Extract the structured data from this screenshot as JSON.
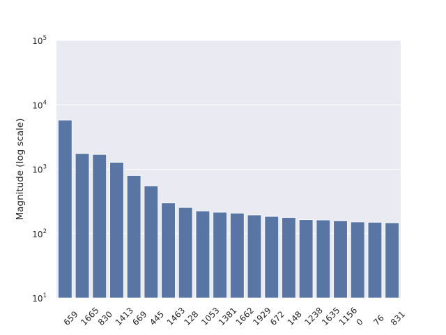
{
  "chart_data": {
    "type": "bar",
    "title": "",
    "xlabel": "",
    "ylabel": "Magnitude (log scale)",
    "y_scale": "log",
    "ylim": [
      10,
      100000
    ],
    "y_ticks": [
      {
        "base": "10",
        "exp": "1"
      },
      {
        "base": "10",
        "exp": "2"
      },
      {
        "base": "10",
        "exp": "3"
      },
      {
        "base": "10",
        "exp": "4"
      },
      {
        "base": "10",
        "exp": "5"
      }
    ],
    "grid": true,
    "legend": "none",
    "categories": [
      "659",
      "1665",
      "830",
      "1413",
      "669",
      "445",
      "1463",
      "128",
      "1053",
      "1381",
      "1662",
      "1929",
      "672",
      "148",
      "1238",
      "1635",
      "1156",
      "0",
      "76",
      "831"
    ],
    "values": [
      5800,
      1750,
      1700,
      1280,
      800,
      550,
      300,
      255,
      225,
      215,
      208,
      195,
      185,
      178,
      165,
      163,
      158,
      152,
      150,
      147
    ],
    "colors": {
      "bar": "#5875a4",
      "plot_background": "#eaeaf2",
      "grid": "#ffffff",
      "text": "#262626"
    }
  }
}
